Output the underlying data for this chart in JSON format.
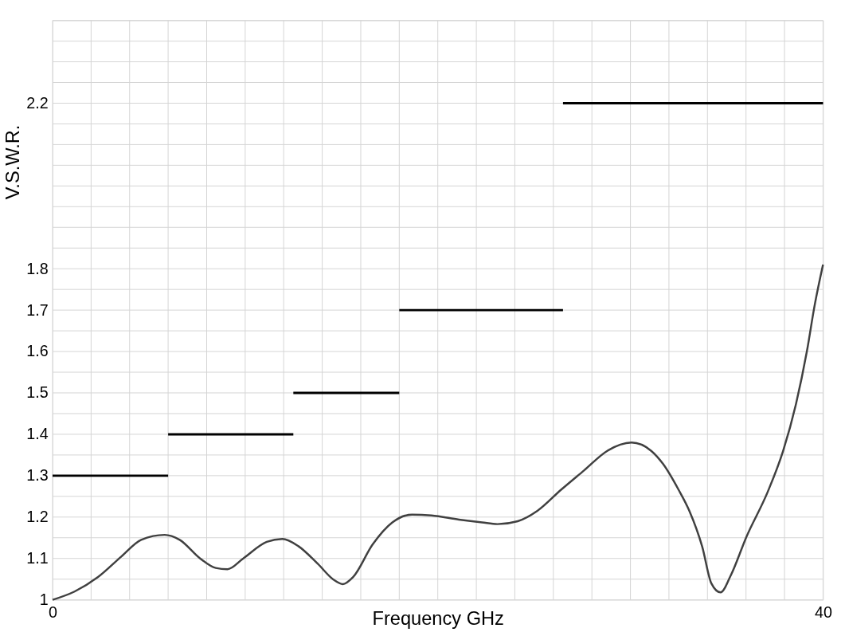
{
  "chart_data": {
    "type": "line",
    "xlabel": "Frequency GHz",
    "ylabel": "V.S.W.R.",
    "xlim": [
      0,
      40
    ],
    "ylim": [
      1,
      2.4
    ],
    "grid": true,
    "marker": "none",
    "line_style": "solid",
    "xticks": [
      0,
      {
        "value": 2,
        "label": null
      },
      {
        "value": 4,
        "label": null
      },
      {
        "value": 6,
        "label": null
      },
      {
        "value": 8,
        "label": null
      },
      {
        "value": 10,
        "label": null
      },
      {
        "value": 12,
        "label": null
      },
      {
        "value": 14,
        "label": null
      },
      {
        "value": 16,
        "label": null
      },
      {
        "value": 18,
        "label": null
      },
      {
        "value": 20,
        "label": null
      },
      {
        "value": 22,
        "label": null
      },
      {
        "value": 24,
        "label": null
      },
      {
        "value": 26,
        "label": null
      },
      {
        "value": 28,
        "label": null
      },
      {
        "value": 30,
        "label": null
      },
      {
        "value": 32,
        "label": null
      },
      {
        "value": 34,
        "label": null
      },
      {
        "value": 36,
        "label": null
      },
      {
        "value": 38,
        "label": null
      },
      40
    ],
    "yticks": [
      1,
      {
        "value": 1.05,
        "label": null
      },
      1.1,
      {
        "value": 1.15,
        "label": null
      },
      1.2,
      {
        "value": 1.25,
        "label": null
      },
      1.3,
      {
        "value": 1.35,
        "label": null
      },
      1.4,
      {
        "value": 1.45,
        "label": null
      },
      1.5,
      {
        "value": 1.55,
        "label": null
      },
      1.6,
      {
        "value": 1.65,
        "label": null
      },
      1.7,
      {
        "value": 1.75,
        "label": null
      },
      1.8,
      {
        "value": 1.85,
        "label": null
      },
      {
        "value": 1.9,
        "label": null
      },
      {
        "value": 1.95,
        "label": null
      },
      {
        "value": 2,
        "label": null
      },
      {
        "value": 2.05,
        "label": null
      },
      {
        "value": 2.1,
        "label": null
      },
      {
        "value": 2.15,
        "label": null
      },
      2.2,
      {
        "value": 2.25,
        "label": null
      },
      {
        "value": 2.3,
        "label": null
      },
      {
        "value": 2.35,
        "label": null
      },
      {
        "value": 2.4,
        "label": null
      }
    ],
    "series": [
      {
        "color": "#404040",
        "x": [
          0,
          1.14,
          2.36,
          3.58,
          4.6,
          5.82,
          6.6,
          7.66,
          8.47,
          9.08,
          9.9,
          11.12,
          11.93,
          12.75,
          13.77,
          14.58,
          15.07,
          15.6,
          16.62,
          17.64,
          18.66,
          19.67,
          21.1,
          22.3,
          23.1,
          24.15,
          25.17,
          26.4,
          27.6,
          28.8,
          30.06,
          31.08,
          31.7,
          32.5,
          33.05,
          33.73,
          34.2,
          34.68,
          35.2,
          36.03,
          37.12,
          37.93,
          38.6,
          39.16,
          39.57,
          40
        ],
        "values": [
          1.0,
          1.02,
          1.055,
          1.105,
          1.145,
          1.157,
          1.145,
          1.1,
          1.077,
          1.074,
          1.1,
          1.14,
          1.147,
          1.13,
          1.087,
          1.049,
          1.038,
          1.055,
          1.134,
          1.187,
          1.206,
          1.204,
          1.194,
          1.187,
          1.183,
          1.19,
          1.215,
          1.266,
          1.313,
          1.36,
          1.38,
          1.36,
          1.328,
          1.266,
          1.216,
          1.128,
          1.04,
          1.018,
          1.058,
          1.153,
          1.26,
          1.36,
          1.474,
          1.6,
          1.713,
          1.81
        ]
      },
      {
        "color": "#000000",
        "x": [
          0,
          6
        ],
        "values": [
          1.3,
          1.3
        ]
      },
      {
        "color": "#000000",
        "x": [
          6,
          12.5
        ],
        "values": [
          1.4,
          1.4
        ]
      },
      {
        "color": "#000000",
        "x": [
          12.5,
          18
        ],
        "values": [
          1.5,
          1.5
        ]
      },
      {
        "color": "#000000",
        "x": [
          18,
          26.5
        ],
        "values": [
          1.7,
          1.7
        ]
      },
      {
        "color": "#000000",
        "x": [
          26.5,
          40
        ],
        "values": [
          2.2,
          2.2
        ]
      }
    ]
  }
}
